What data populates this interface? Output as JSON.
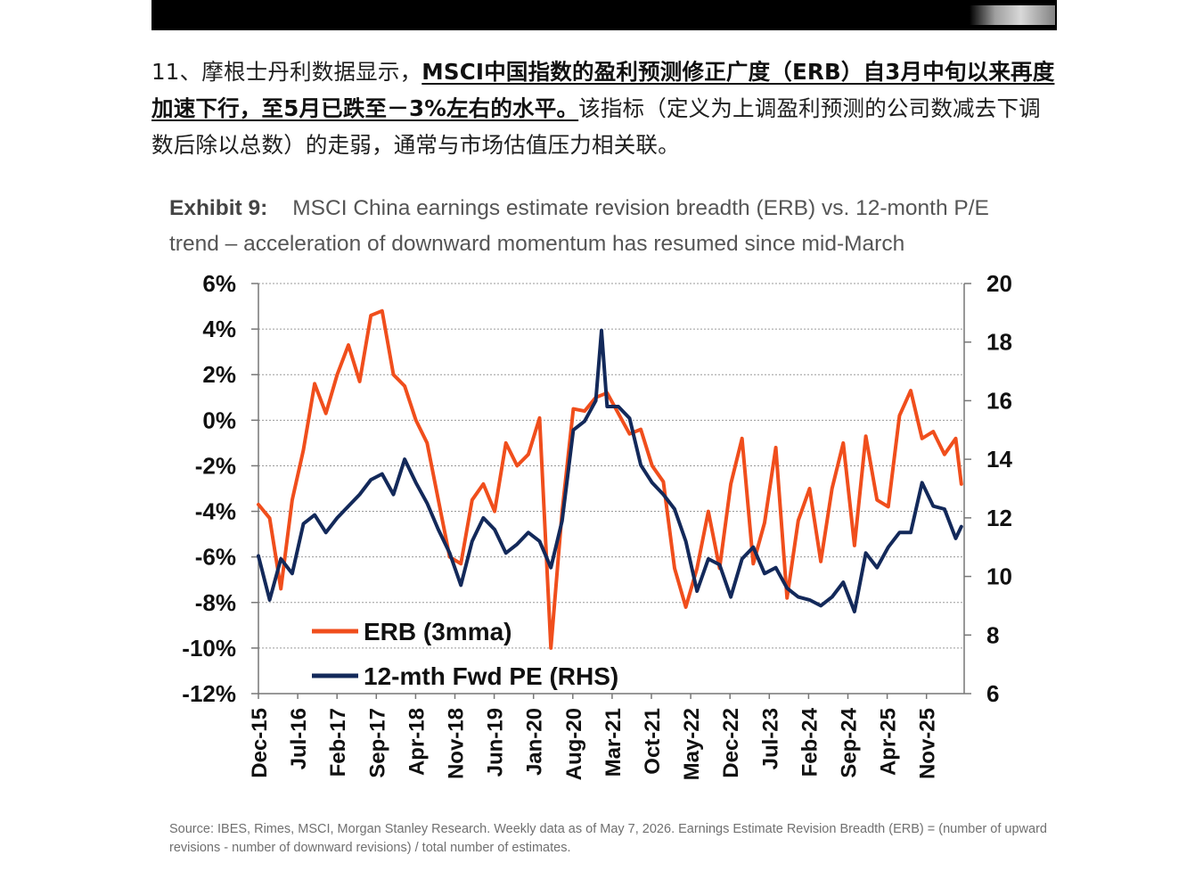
{
  "article": {
    "para_intro": "11、摩根士丹利数据显示，",
    "para_bold": "MSCI中国指数的盈利预测修正广度（ERB）自3月中旬以来再度加速下行，至5月已跌至－3%左右的水平。",
    "para_rest": "该指标（定义为上调盈利预测的公司数减去下调数后除以总数）的走弱，通常与市场估值压力相关联。"
  },
  "exhibit": {
    "label": "Exhibit 9:",
    "title": "MSCI China earnings estimate revision breadth (ERB) vs. 12-month P/E trend – acceleration of downward momentum has resumed since mid-March"
  },
  "source_note": "Source: IBES, Rimes, MSCI, Morgan Stanley Research. Weekly data as of May 7, 2026. Earnings Estimate Revision Breadth (ERB) = (number of upward revisions - number of downward revisions) / total number of estimates.",
  "colors": {
    "erb": "#f04e1c",
    "pe": "#13295a",
    "grid": "#9a9a9a",
    "axis": "#777777"
  },
  "chart_data": {
    "type": "line",
    "x_tick_labels": [
      "Dec-15",
      "Jul-16",
      "Feb-17",
      "Sep-17",
      "Apr-18",
      "Nov-18",
      "Jun-19",
      "Jan-20",
      "Aug-20",
      "Mar-21",
      "Oct-21",
      "May-22",
      "Dec-22",
      "Jul-23",
      "Feb-24",
      "Sep-24",
      "Apr-25",
      "Nov-25"
    ],
    "y_left": {
      "ticks": [
        "6%",
        "4%",
        "2%",
        "0%",
        "-2%",
        "-4%",
        "-6%",
        "-8%",
        "-10%",
        "-12%"
      ],
      "ylim": [
        -12,
        6
      ]
    },
    "y_right": {
      "ticks": [
        "20",
        "18",
        "16",
        "14",
        "12",
        "10",
        "8",
        "6"
      ],
      "ylim": [
        6,
        20
      ]
    },
    "grid": true,
    "legend_placement": "bottom-left",
    "series": [
      {
        "name": "ERB (3mma)",
        "axis": "left",
        "x": [
          "2015-12",
          "2016-02",
          "2016-04",
          "2016-06",
          "2016-08",
          "2016-10",
          "2016-12",
          "2017-02",
          "2017-04",
          "2017-06",
          "2017-08",
          "2017-10",
          "2017-12",
          "2018-02",
          "2018-04",
          "2018-06",
          "2018-08",
          "2018-10",
          "2018-12",
          "2019-02",
          "2019-04",
          "2019-06",
          "2019-08",
          "2019-10",
          "2019-12",
          "2020-02",
          "2020-04",
          "2020-06",
          "2020-08",
          "2020-10",
          "2020-12",
          "2021-02",
          "2021-04",
          "2021-06",
          "2021-08",
          "2021-10",
          "2021-12",
          "2022-02",
          "2022-04",
          "2022-06",
          "2022-08",
          "2022-10",
          "2022-12",
          "2023-02",
          "2023-04",
          "2023-06",
          "2023-08",
          "2023-10",
          "2023-12",
          "2024-02",
          "2024-04",
          "2024-06",
          "2024-08",
          "2024-10",
          "2024-12",
          "2025-02",
          "2025-04",
          "2025-06",
          "2025-08",
          "2025-10",
          "2025-12",
          "2026-02",
          "2026-04",
          "2026-05"
        ],
        "values": [
          -3.7,
          -4.3,
          -7.4,
          -3.5,
          -1.3,
          1.6,
          0.3,
          2.0,
          3.3,
          1.7,
          4.6,
          4.8,
          2.0,
          1.5,
          0.0,
          -1.0,
          -3.5,
          -6.0,
          -6.3,
          -3.5,
          -2.8,
          -4.0,
          -1.0,
          -2.0,
          -1.5,
          0.1,
          -10.0,
          -4.0,
          0.5,
          0.4,
          1.0,
          1.2,
          0.3,
          -0.6,
          -0.4,
          -2.0,
          -2.7,
          -6.5,
          -8.2,
          -6.5,
          -4.0,
          -6.5,
          -2.8,
          -0.8,
          -6.3,
          -4.5,
          -1.2,
          -7.8,
          -4.4,
          -3.0,
          -6.2,
          -3.0,
          -1.0,
          -5.5,
          -0.7,
          -3.5,
          -3.8,
          0.2,
          1.3,
          -0.8,
          -0.5,
          -1.5,
          -0.8,
          -2.8
        ]
      },
      {
        "name": "12-mth Fwd PE (RHS)",
        "axis": "right",
        "x": [
          "2015-12",
          "2016-02",
          "2016-04",
          "2016-06",
          "2016-08",
          "2016-10",
          "2016-12",
          "2017-02",
          "2017-04",
          "2017-06",
          "2017-08",
          "2017-10",
          "2017-12",
          "2018-02",
          "2018-04",
          "2018-06",
          "2018-08",
          "2018-10",
          "2018-12",
          "2019-02",
          "2019-04",
          "2019-06",
          "2019-08",
          "2019-10",
          "2019-12",
          "2020-02",
          "2020-04",
          "2020-06",
          "2020-08",
          "2020-10",
          "2020-12",
          "2021-01",
          "2021-02",
          "2021-04",
          "2021-06",
          "2021-08",
          "2021-10",
          "2021-12",
          "2022-02",
          "2022-04",
          "2022-06",
          "2022-08",
          "2022-10",
          "2022-12",
          "2023-02",
          "2023-04",
          "2023-06",
          "2023-08",
          "2023-10",
          "2023-12",
          "2024-02",
          "2024-04",
          "2024-06",
          "2024-08",
          "2024-10",
          "2024-12",
          "2025-02",
          "2025-04",
          "2025-06",
          "2025-08",
          "2025-10",
          "2025-12",
          "2026-02",
          "2026-04",
          "2026-05"
        ],
        "values": [
          10.7,
          9.2,
          10.6,
          10.1,
          11.8,
          12.1,
          11.5,
          12.0,
          12.4,
          12.8,
          13.3,
          13.5,
          12.8,
          14.0,
          13.2,
          12.5,
          11.6,
          10.8,
          9.7,
          11.2,
          12.0,
          11.6,
          10.8,
          11.1,
          11.5,
          11.2,
          10.3,
          11.9,
          15.0,
          15.3,
          16.0,
          18.4,
          15.8,
          15.8,
          15.4,
          13.8,
          13.2,
          12.8,
          12.3,
          11.2,
          9.5,
          10.6,
          10.4,
          9.3,
          10.6,
          11.0,
          10.1,
          10.3,
          9.6,
          9.3,
          9.2,
          9.0,
          9.3,
          9.8,
          8.8,
          10.8,
          10.3,
          11.0,
          11.5,
          11.5,
          13.2,
          12.4,
          12.3,
          11.3,
          11.7
        ]
      }
    ]
  }
}
